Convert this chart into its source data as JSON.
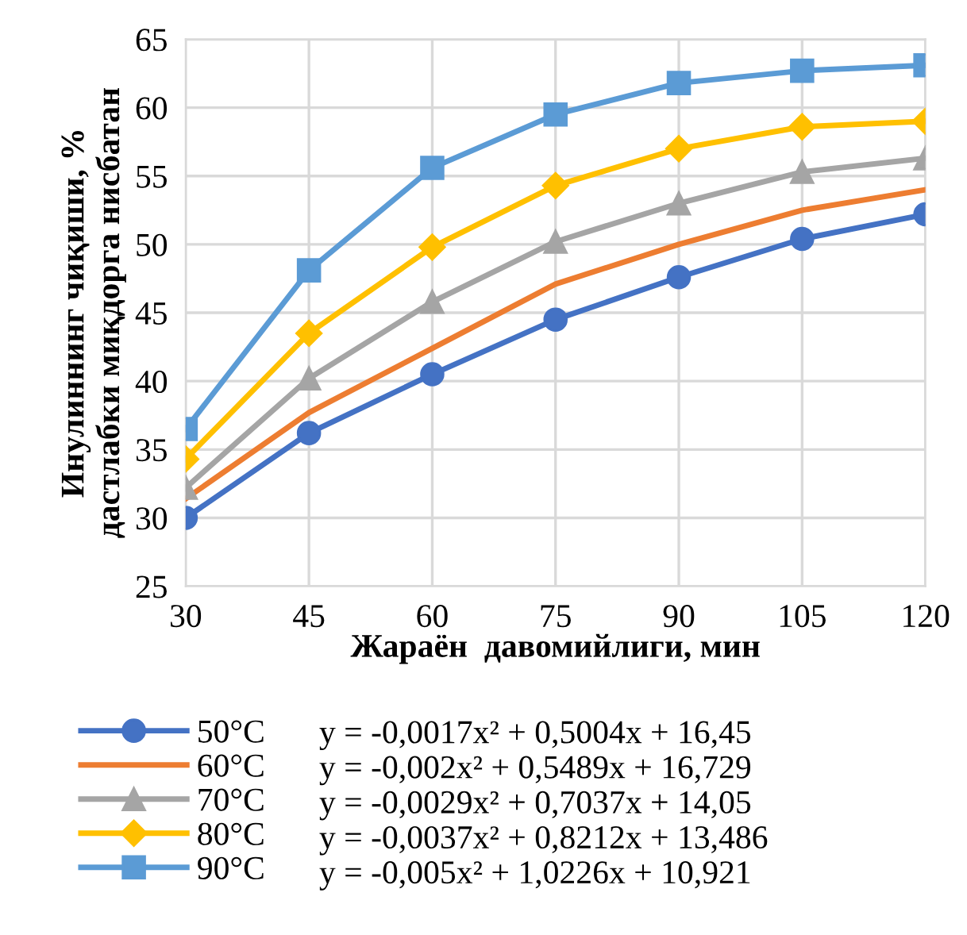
{
  "chart_data": {
    "type": "line",
    "xlabel": "Жараён  давомийлиги, мин",
    "ylabel": "Инулиннинг чиқиши, %\nдастлабки миқдорга нисбатан",
    "x": [
      30,
      45,
      60,
      75,
      90,
      105,
      120
    ],
    "series": [
      {
        "name": "50°C",
        "color": "#4472c4",
        "marker": "circle",
        "values": [
          30,
          36.2,
          40.5,
          44.5,
          47.6,
          50.4,
          52.2
        ]
      },
      {
        "name": "60°C",
        "color": "#ed7d31",
        "marker": "none",
        "values": [
          31.4,
          37.7,
          42.4,
          47.1,
          50.0,
          52.5,
          54.0
        ]
      },
      {
        "name": "70°C",
        "color": "#a5a5a5",
        "marker": "triangle",
        "values": [
          32.2,
          40.2,
          45.8,
          50.2,
          53.0,
          55.3,
          56.3
        ]
      },
      {
        "name": "80°C",
        "color": "#ffc000",
        "marker": "diamond",
        "values": [
          34.3,
          43.5,
          49.8,
          54.3,
          57.0,
          58.6,
          59.0
        ]
      },
      {
        "name": "90°C",
        "color": "#5b9bd5",
        "marker": "square",
        "values": [
          36.5,
          48.1,
          55.6,
          59.5,
          61.8,
          62.7,
          63.1
        ]
      }
    ],
    "annotations": [
      "y = -0,0017x² + 0,5004x + 16,45",
      "y = -0,002x² + 0,5489x + 16,729",
      "y = -0,0029x² + 0,7037x + 14,05",
      "y = -0,0037x² + 0,8212x + 13,486",
      "y = -0,005x² + 1,0226x + 10,921"
    ],
    "xlim": [
      30,
      120
    ],
    "xticks": [
      30,
      45,
      60,
      75,
      90,
      105,
      120
    ],
    "ylim": [
      25,
      65
    ],
    "yticks": [
      25,
      30,
      35,
      40,
      45,
      50,
      55,
      60,
      65
    ],
    "grid": true,
    "legend": "bottom",
    "line_style": "solid"
  }
}
